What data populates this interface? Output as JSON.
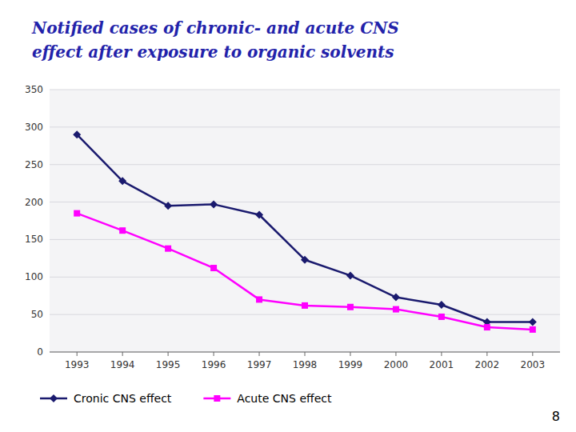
{
  "chart_data": {
    "type": "line",
    "title": "Notified cases of chronic- and acute CNS",
    "subtitle": "effect after exposure to organic solvents",
    "x": [
      1993,
      1994,
      1995,
      1996,
      1997,
      1998,
      1999,
      2000,
      2001,
      2002,
      2003
    ],
    "series": [
      {
        "name": "Cronic CNS effect",
        "color": "#1a1a6e",
        "marker": "diamond",
        "values": [
          290,
          228,
          195,
          197,
          183,
          123,
          102,
          73,
          63,
          40,
          40
        ]
      },
      {
        "name": "Acute CNS effect",
        "color": "#ff00ff",
        "marker": "square",
        "values": [
          185,
          162,
          138,
          112,
          70,
          62,
          60,
          57,
          47,
          33,
          30
        ]
      }
    ],
    "xlim": [
      1992.4,
      2003.6
    ],
    "xticks": [
      1993,
      1994,
      1995,
      1996,
      1997,
      1998,
      1999,
      2000,
      2001,
      2002,
      2003
    ],
    "ylim": [
      0,
      350
    ],
    "yticks": [
      0,
      50,
      100,
      150,
      200,
      250,
      300,
      350
    ],
    "grid": true,
    "legend": "bottom",
    "annotations": [
      "8"
    ]
  }
}
